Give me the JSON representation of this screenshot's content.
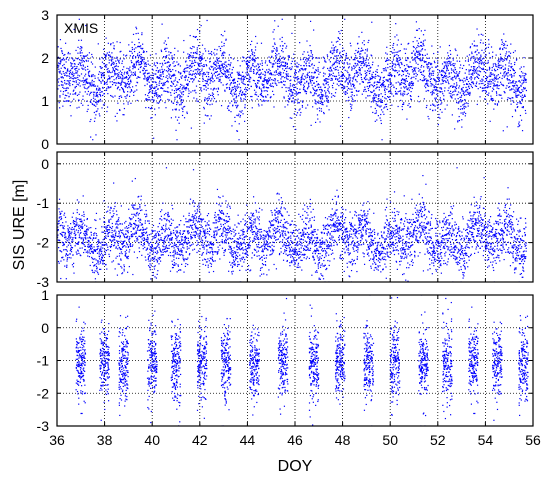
{
  "chart_data": {
    "type": "scatter",
    "xlabel": "DOY",
    "ylabel": "SIS URE [m]",
    "xlim": [
      36,
      56
    ],
    "xticks": [
      36,
      38,
      40,
      42,
      44,
      46,
      48,
      50,
      52,
      54,
      56
    ],
    "grid": "dotted",
    "marker_color": "#0000ff",
    "panels": [
      {
        "label": "XMIS",
        "ylim": [
          0,
          3
        ],
        "yticks": [
          0,
          1,
          2,
          3
        ],
        "distribution": "continuous",
        "mean": 1.55,
        "spread": 0.35,
        "approx_range": [
          0.1,
          2.9
        ]
      },
      {
        "label": "",
        "ylim": [
          -3,
          0.3
        ],
        "yticks": [
          -3,
          -2,
          -1,
          0
        ],
        "distribution": "continuous",
        "mean": -1.9,
        "spread": 0.35,
        "approx_range": [
          -3.0,
          -0.1
        ]
      },
      {
        "label": "",
        "ylim": [
          -3,
          1
        ],
        "yticks": [
          -3,
          -2,
          -1,
          0,
          1
        ],
        "distribution": "clustered",
        "mean": -1.1,
        "spread": 0.55,
        "approx_range": [
          -3.0,
          1.0
        ],
        "cluster_centers": [
          37.0,
          38.0,
          38.8,
          40.0,
          41.0,
          42.1,
          43.1,
          44.3,
          45.5,
          46.8,
          47.9,
          49.1,
          50.2,
          51.4,
          52.4,
          53.5,
          54.5,
          55.6
        ]
      }
    ]
  }
}
